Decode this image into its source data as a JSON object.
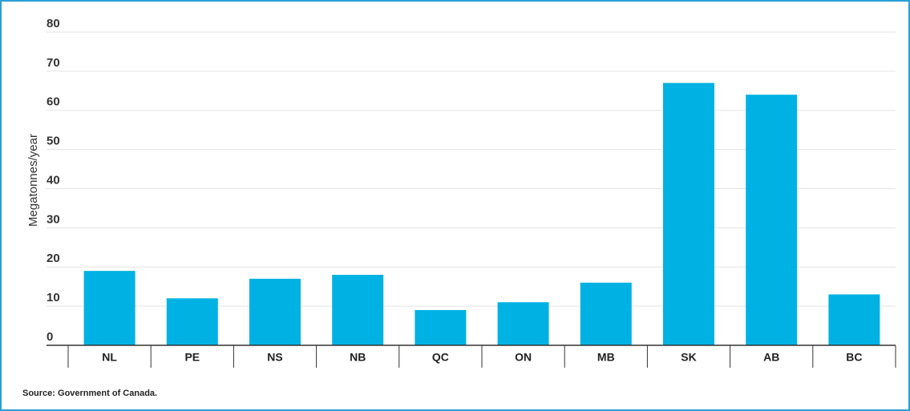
{
  "chart_data": {
    "type": "bar",
    "y_axis_label": "Megatonnes/year",
    "source": "Source: Government of Canada.",
    "categories": [
      "NL",
      "PE",
      "NS",
      "NB",
      "QC",
      "ON",
      "MB",
      "SK",
      "AB",
      "BC"
    ],
    "values": [
      19,
      12,
      17,
      18,
      9,
      11,
      16,
      67,
      64,
      13
    ],
    "color": "#00b2e3",
    "ylim": [
      0,
      80
    ],
    "yticks": [
      0,
      10,
      20,
      30,
      40,
      50,
      60,
      70,
      80
    ],
    "grid": true
  }
}
